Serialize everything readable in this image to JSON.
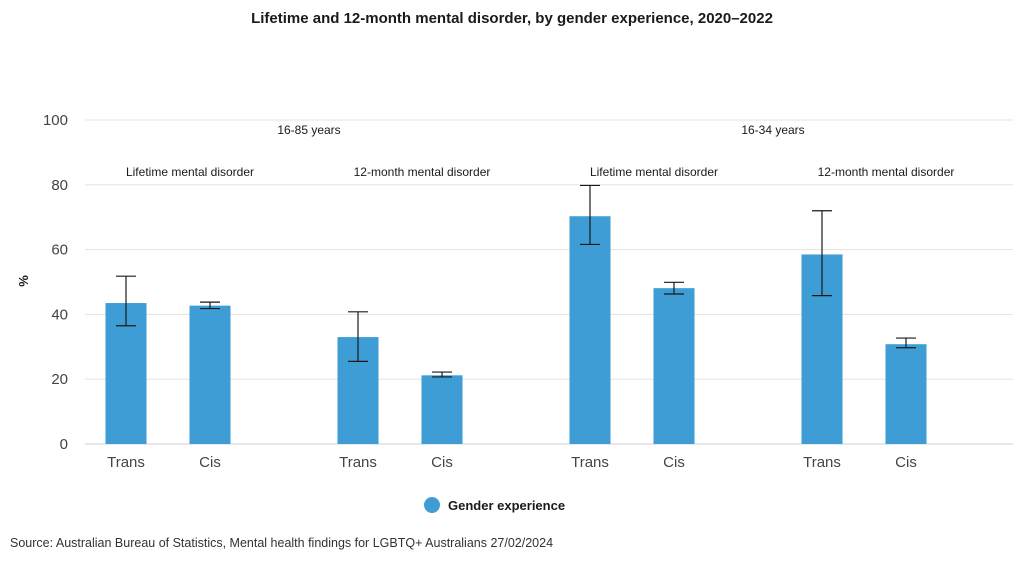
{
  "title": "Lifetime and 12-month mental disorder, by gender experience, 2020–2022",
  "source": "Source: Australian Bureau of Statistics, Mental health findings for LGBTQ+ Australians 27/02/2024",
  "colors": {
    "bar": "#3d9dd4",
    "grid": "#e3e3e3",
    "error": "#1a1a1a"
  },
  "chart_data": {
    "type": "bar",
    "ylabel": "%",
    "ylim": [
      0,
      100
    ],
    "yticks": [
      0,
      20,
      40,
      60,
      80,
      100
    ],
    "age_groups": [
      {
        "label": "16-85 years",
        "panels": [
          0,
          1
        ]
      },
      {
        "label": "16-34 years",
        "panels": [
          2,
          3
        ]
      }
    ],
    "panels": [
      {
        "label": "Lifetime mental disorder",
        "bars": [
          {
            "category": "Trans",
            "value": 43.5,
            "ci": [
              36.5,
              51.8
            ]
          },
          {
            "category": "Cis",
            "value": 42.7,
            "ci": [
              41.8,
              43.8
            ]
          }
        ]
      },
      {
        "label": "12-month mental disorder",
        "bars": [
          {
            "category": "Trans",
            "value": 33.0,
            "ci": [
              25.5,
              40.8
            ]
          },
          {
            "category": "Cis",
            "value": 21.2,
            "ci": [
              20.7,
              22.2
            ]
          }
        ]
      },
      {
        "label": "Lifetime mental disorder",
        "bars": [
          {
            "category": "Trans",
            "value": 70.3,
            "ci": [
              61.6,
              79.8
            ]
          },
          {
            "category": "Cis",
            "value": 48.1,
            "ci": [
              46.3,
              49.9
            ]
          }
        ]
      },
      {
        "label": "12-month mental disorder",
        "bars": [
          {
            "category": "Trans",
            "value": 58.5,
            "ci": [
              45.8,
              72.0
            ]
          },
          {
            "category": "Cis",
            "value": 30.8,
            "ci": [
              29.7,
              32.7
            ]
          }
        ]
      }
    ],
    "legend": {
      "label": "Gender experience",
      "position": "bottom"
    },
    "grid": true
  }
}
